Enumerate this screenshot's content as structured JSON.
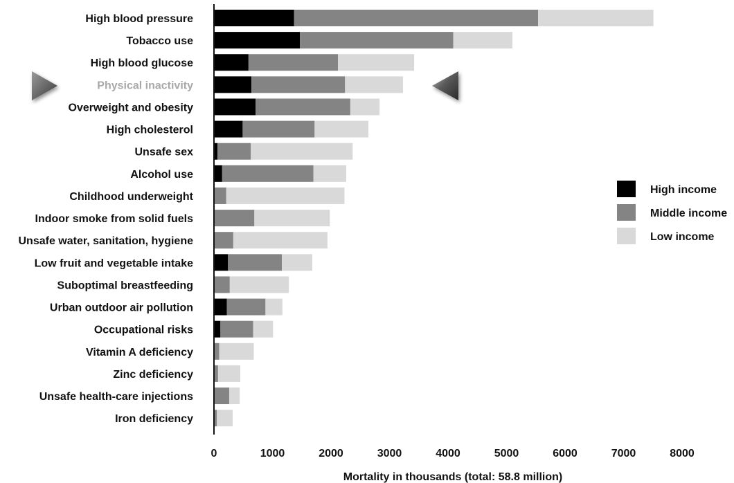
{
  "chart_data": {
    "type": "bar",
    "orientation": "horizontal",
    "stacked": true,
    "categories": [
      "High blood pressure",
      "Tobacco use",
      "High blood glucose",
      "Physical inactivity",
      "Overweight and obesity",
      "High cholesterol",
      "Unsafe sex",
      "Alcohol use",
      "Childhood underweight",
      "Indoor smoke from solid fuels",
      "Unsafe water, sanitation, hygiene",
      "Low fruit and vegetable intake",
      "Suboptimal breastfeeding",
      "Urban outdoor air pollution",
      "Occupational risks",
      "Vitamin A deficiency",
      "Zinc deficiency",
      "Unsafe health-care injections",
      "Iron deficiency"
    ],
    "highlighted_category": "Physical inactivity",
    "series": [
      {
        "name": "High income",
        "color": "#000000",
        "values": [
          1370,
          1470,
          590,
          640,
          710,
          490,
          60,
          140,
          10,
          10,
          10,
          240,
          10,
          220,
          110,
          10,
          10,
          10,
          10
        ]
      },
      {
        "name": "Middle income",
        "color": "#848484",
        "values": [
          4170,
          2620,
          1530,
          1600,
          1620,
          1230,
          570,
          1560,
          200,
          680,
          320,
          920,
          260,
          660,
          560,
          80,
          60,
          250,
          40
        ]
      },
      {
        "name": "Low income",
        "color": "#d9d9d9",
        "values": [
          1970,
          1010,
          1300,
          990,
          500,
          920,
          1740,
          560,
          2020,
          1290,
          1610,
          520,
          1010,
          290,
          340,
          590,
          380,
          180,
          270
        ]
      }
    ],
    "xlim": [
      0,
      8000
    ],
    "xticks": [
      0,
      1000,
      2000,
      3000,
      4000,
      5000,
      6000,
      7000,
      8000
    ],
    "xlabel": "Mortality in thousands (total: 58.8 million)",
    "legend_position": "right",
    "grid": false
  },
  "decorations": {
    "left_marker": "right-pointing-triangle-icon",
    "right_marker": "left-pointing-triangle-icon"
  }
}
